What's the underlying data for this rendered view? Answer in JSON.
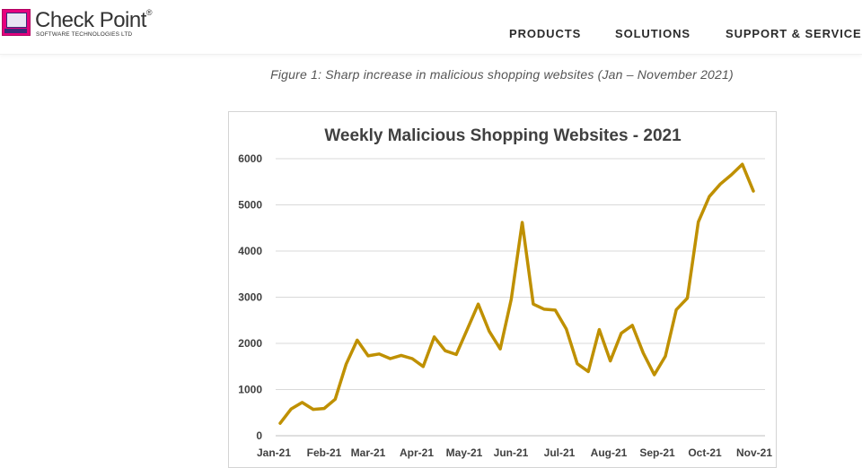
{
  "header": {
    "logo_text": "Check Point",
    "logo_tm": "®",
    "logo_subtitle": "SOFTWARE TECHNOLOGIES LTD",
    "nav": [
      "PRODUCTS",
      "SOLUTIONS",
      "SUPPORT & SERVICES"
    ]
  },
  "figure_caption": "Figure 1: Sharp increase in malicious shopping websites (Jan – November 2021)",
  "colors": {
    "line": "#bf9000",
    "grid": "#d9d9d9",
    "title": "#404040",
    "axis_text": "#404040"
  },
  "chart_data": {
    "type": "line",
    "title": "Weekly Malicious Shopping Websites - 2021",
    "xlabel": "",
    "ylabel": "",
    "ylim": [
      0,
      6000
    ],
    "yticks": [
      "0",
      "1000",
      "2000",
      "3000",
      "4000",
      "5000",
      "6000"
    ],
    "xtick_labels": [
      "Jan-21",
      "Feb-21",
      "Mar-21",
      "Apr-21",
      "May-21",
      "Jun-21",
      "Jul-21",
      "Aug-21",
      "Sep-21",
      "Oct-21",
      "Nov-21"
    ],
    "grid": true,
    "legend": "none",
    "series": [
      {
        "values": [
          270,
          580,
          720,
          570,
          590,
          790,
          1550,
          2070,
          1730,
          1770,
          1670,
          1740,
          1670,
          1500,
          2140,
          1840,
          1760,
          2300,
          2850,
          2260,
          1880,
          2960,
          4620,
          2850,
          2740,
          2720,
          2310,
          1560,
          1390,
          2300,
          1620,
          2220,
          2390,
          1790,
          1320,
          1720,
          2730,
          2980,
          4630,
          5180,
          5450,
          5650,
          5880,
          5300
        ]
      }
    ]
  }
}
